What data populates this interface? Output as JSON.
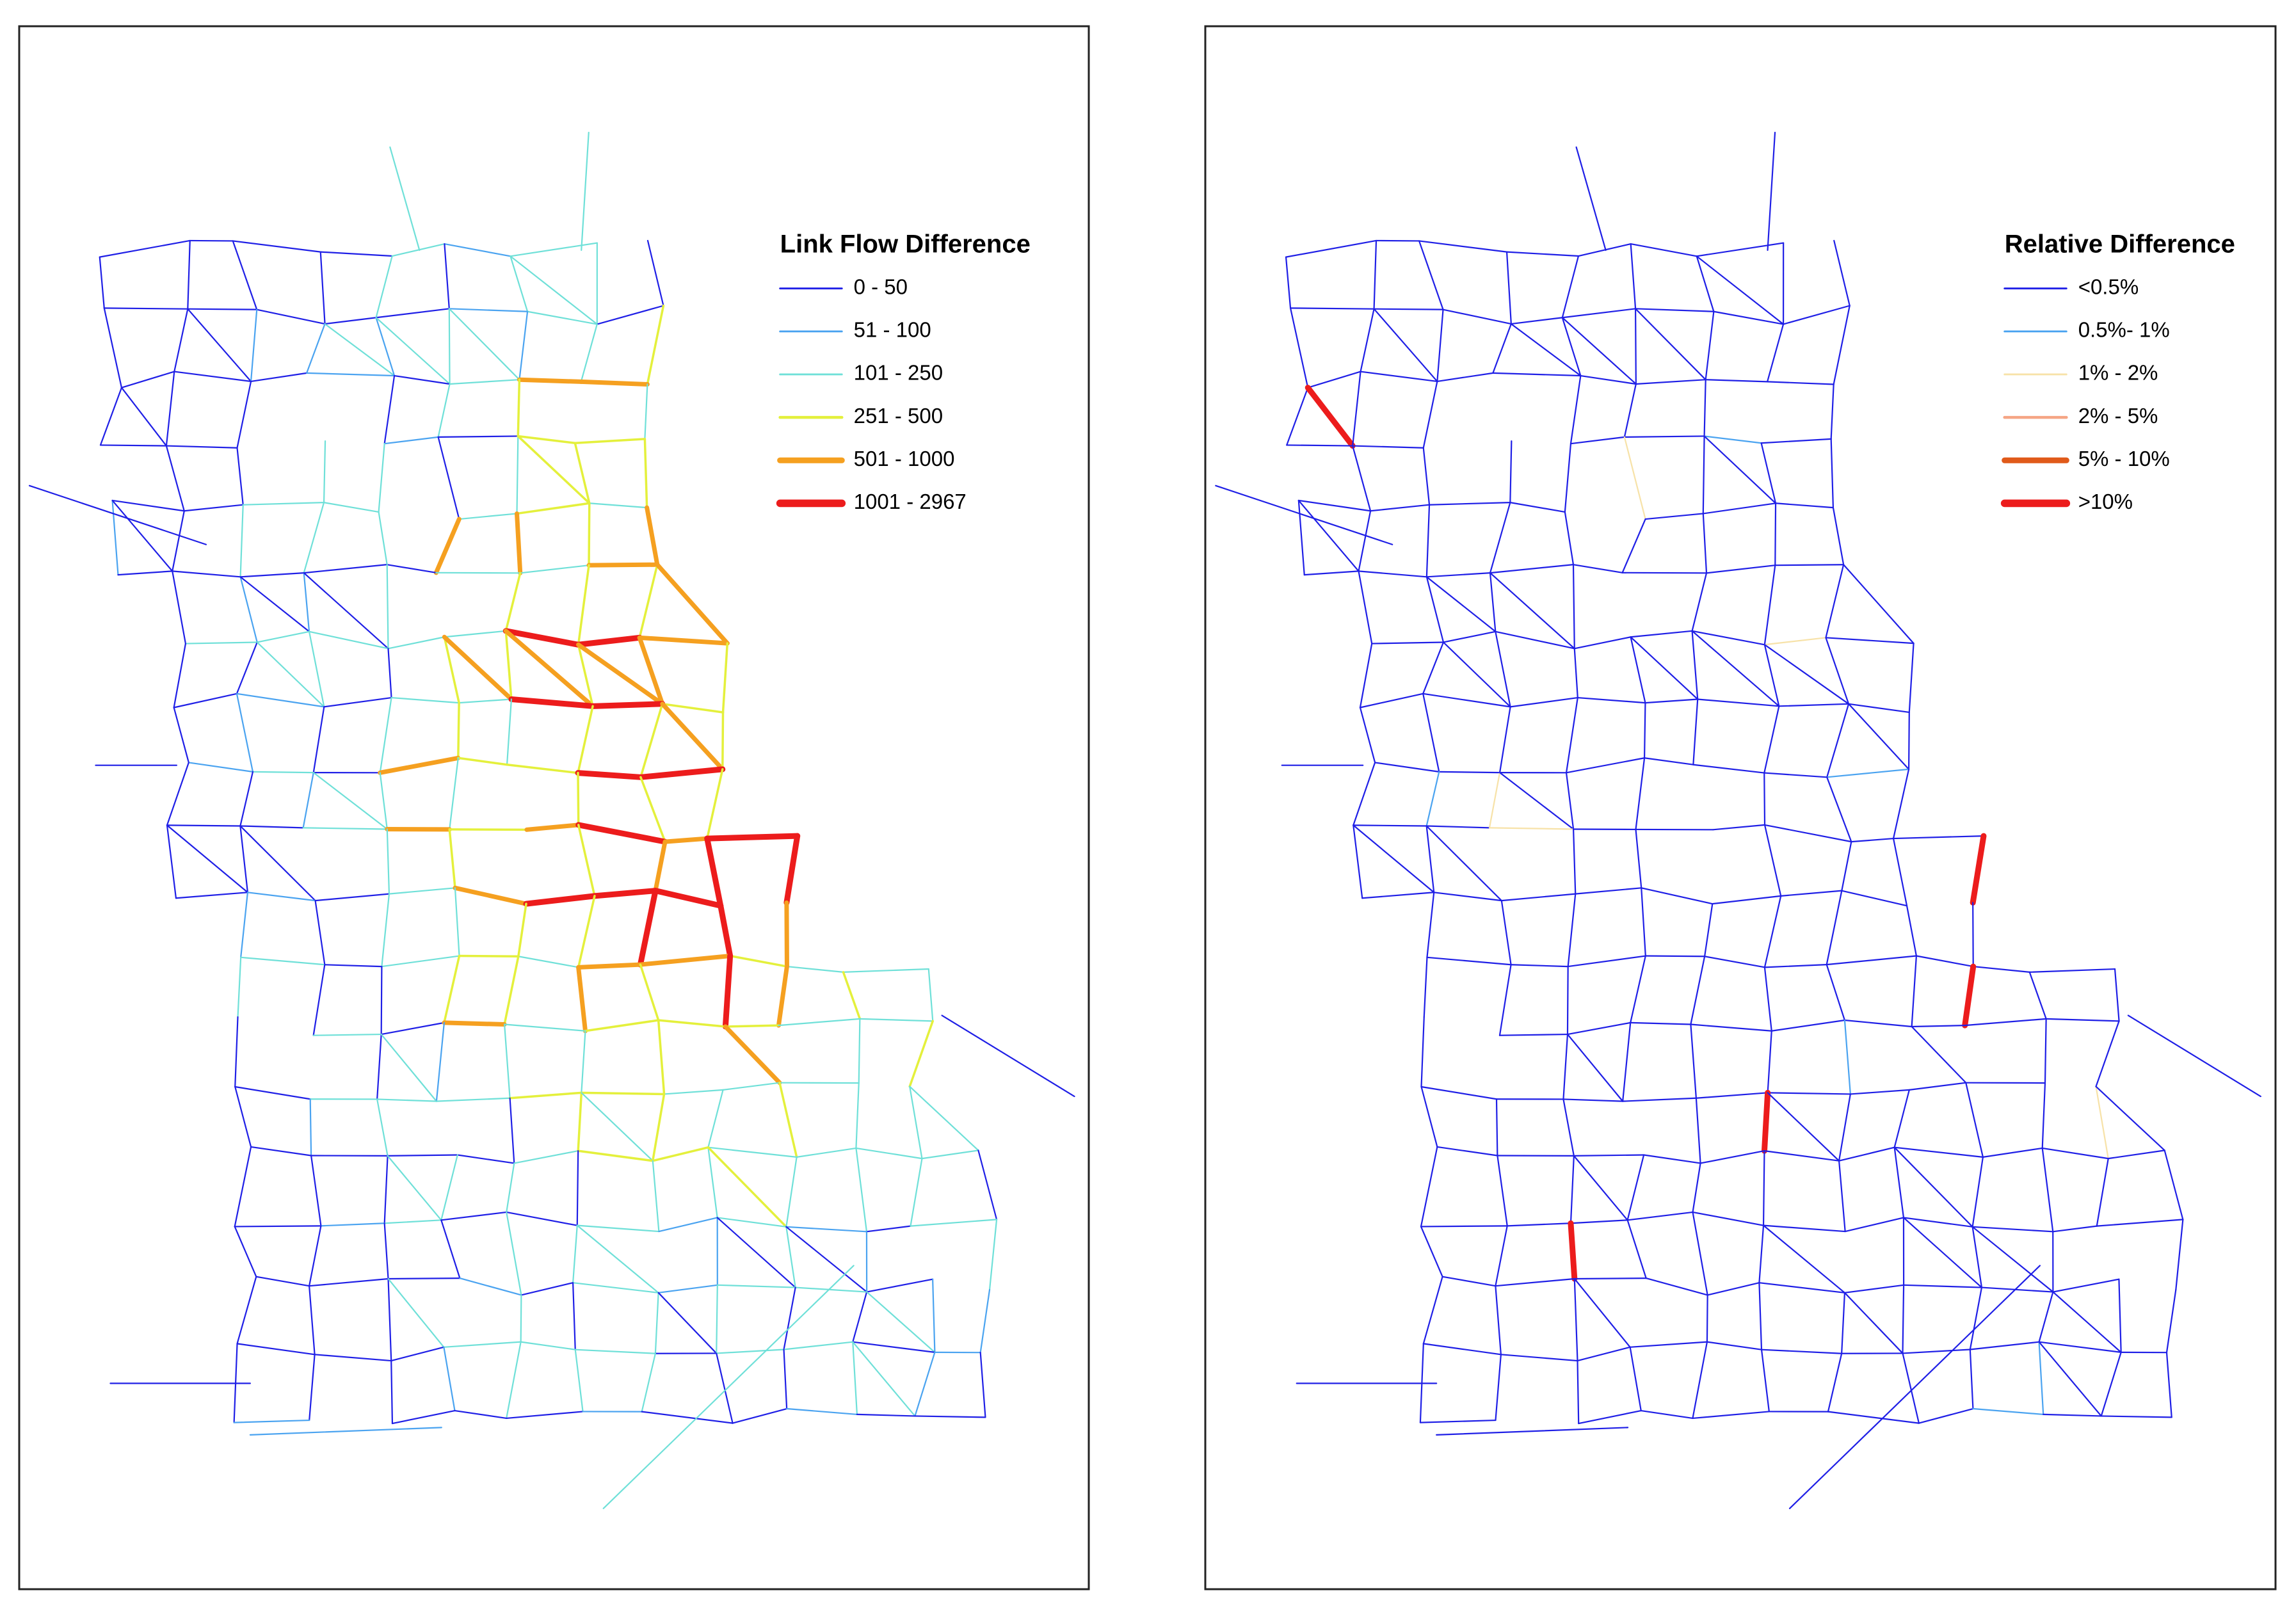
{
  "maps": [
    {
      "legend": {
        "title": "Link Flow Difference",
        "items": [
          {
            "label": "0 - 50",
            "color": "#1f1fe6"
          },
          {
            "label": "51 - 100",
            "color": "#4aa3f0"
          },
          {
            "label": "101 - 250",
            "color": "#6fe0d8"
          },
          {
            "label": "251 - 500",
            "color": "#e4f03c"
          },
          {
            "label": "501 - 1000",
            "color": "#f5a020"
          },
          {
            "label": "1001 - 2967",
            "color": "#ec1c1c"
          }
        ]
      }
    },
    {
      "legend": {
        "title": "Relative Difference",
        "items": [
          {
            "label": "<0.5%",
            "color": "#1f1fe6"
          },
          {
            "label": "0.5%- 1%",
            "color": "#4aa3f0"
          },
          {
            "label": "1% - 2%",
            "color": "#f7e2a8"
          },
          {
            "label": "2% - 5%",
            "color": "#f5a585"
          },
          {
            "label": "5% - 10%",
            "color": "#e05a1a"
          },
          {
            "label": ">10%",
            "color": "#ec1c1c"
          }
        ]
      }
    }
  ]
}
